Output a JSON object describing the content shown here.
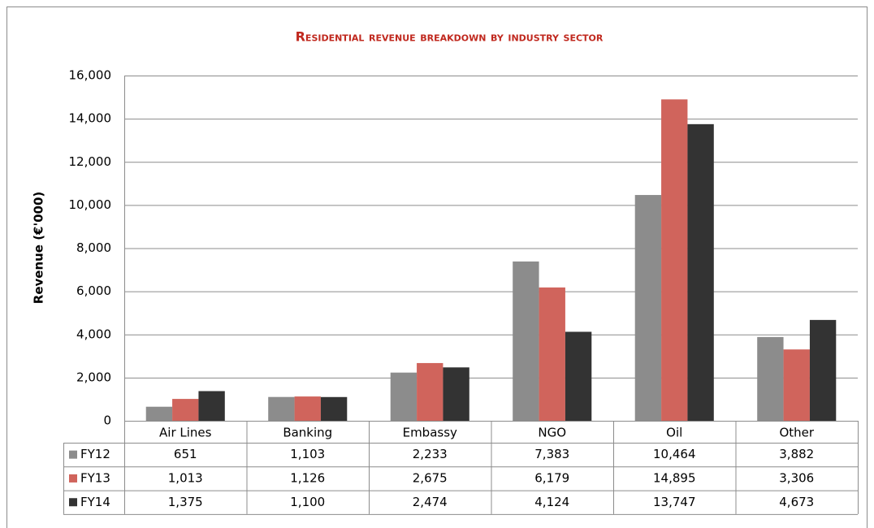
{
  "chart_data": {
    "type": "bar",
    "title": "Residential revenue breakdown by industry sector",
    "y_label": "Revenue (€'000)",
    "categories": [
      "Air Lines",
      "Banking",
      "Embassy",
      "NGO",
      "Oil",
      "Other"
    ],
    "series": [
      {
        "name": "FY12",
        "color": "#8c8c8c",
        "values": [
          651,
          1103,
          2233,
          7383,
          10464,
          3882
        ],
        "value_labels": [
          "651",
          "1,103",
          "2,233",
          "7,383",
          "10,464",
          "3,882"
        ]
      },
      {
        "name": "FY13",
        "color": "#d0645c",
        "values": [
          1013,
          1126,
          2675,
          6179,
          14895,
          3306
        ],
        "value_labels": [
          "1,013",
          "1,126",
          "2,675",
          "6,179",
          "14,895",
          "3,306"
        ]
      },
      {
        "name": "FY14",
        "color": "#333333",
        "values": [
          1375,
          1100,
          2474,
          4124,
          13747,
          4673
        ],
        "value_labels": [
          "1,375",
          "1,100",
          "2,474",
          "4,124",
          "13,747",
          "4,673"
        ]
      }
    ],
    "ylim": [
      0,
      16000
    ],
    "yticks": [
      0,
      {
        "value": 2000,
        "label": "2,000"
      },
      {
        "value": 4000,
        "label": "4,000"
      },
      {
        "value": 6000,
        "label": "6,000"
      },
      {
        "value": 8000,
        "label": "8,000"
      },
      {
        "value": 10000,
        "label": "10,000"
      },
      {
        "value": 12000,
        "label": "12,000"
      },
      {
        "value": 14000,
        "label": "14,000"
      },
      {
        "value": 16000,
        "label": "16,000"
      }
    ],
    "grid": true
  }
}
